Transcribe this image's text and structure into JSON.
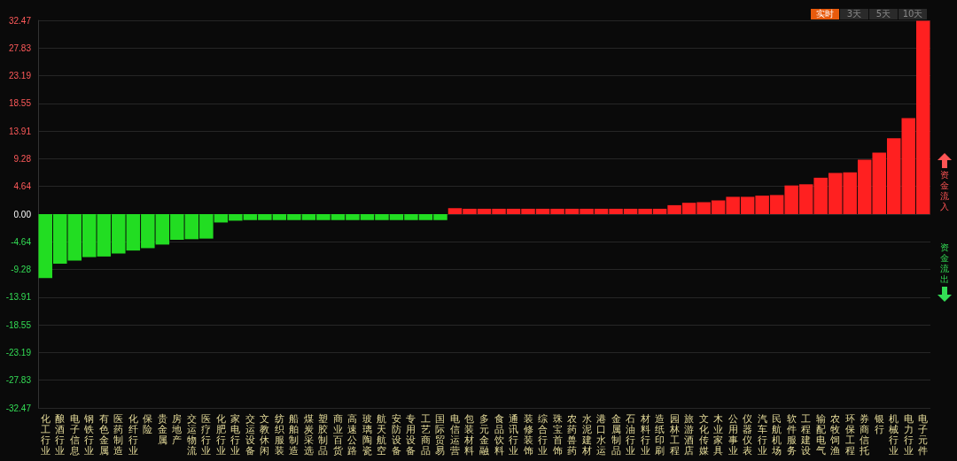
{
  "chart_data": {
    "type": "bar",
    "categories": [
      "化工行业",
      "酿酒行业",
      "电子信息",
      "钢铁行业",
      "有色金属",
      "医药制造",
      "化纤行业",
      "保险",
      "贵金属",
      "房地产",
      "交运物流",
      "医疗行业",
      "化肥行业",
      "家电行业",
      "交运设备",
      "文教休闲",
      "纺织服装",
      "船舶制造",
      "煤炭采选",
      "塑胶制品",
      "商业百货",
      "高速公路",
      "玻璃陶瓷",
      "航天航空",
      "安防设备",
      "专用设备",
      "工艺商品",
      "国际贸易",
      "电信运营",
      "包装材料",
      "多元金融",
      "食品饮料",
      "通讯行业",
      "装修装饰",
      "综合行业",
      "珠宝首饰",
      "农药兽药",
      "水泥建材",
      "港口水运",
      "金属制品",
      "石油行业",
      "材料行业",
      "造纸印刷",
      "园林工程",
      "旅游酒店",
      "文化传媒",
      "木业家具",
      "公用事业",
      "仪器仪表",
      "汽车行业",
      "民航机场",
      "软件服务",
      "工程建设",
      "输配电气",
      "农牧饲渔",
      "环保工程",
      "券商信托",
      "银行",
      "机械行业",
      "电力行业",
      "电子元件"
    ],
    "values": [
      -10.7,
      -8.3,
      -7.8,
      -7.2,
      -7.1,
      -6.6,
      -6.1,
      -5.7,
      -5.1,
      -4.3,
      -4.2,
      -4.1,
      -1.4,
      -1.1,
      -1.0,
      -1.0,
      -1.0,
      -1.0,
      -1.0,
      -1.0,
      -1.0,
      -1.0,
      -1.0,
      -1.0,
      -1.0,
      -1.0,
      -1.0,
      -1.0,
      1.0,
      0.9,
      0.9,
      0.9,
      0.9,
      0.9,
      0.9,
      0.9,
      0.9,
      0.9,
      0.9,
      0.9,
      0.9,
      0.9,
      0.9,
      1.5,
      1.9,
      2.0,
      2.3,
      2.9,
      2.9,
      3.1,
      3.2,
      4.8,
      5.0,
      6.1,
      6.9,
      7.0,
      9.1,
      10.3,
      12.7,
      16.1,
      32.4
    ],
    "colors": [
      "#22dd22",
      "#22dd22",
      "#22dd22",
      "#22dd22",
      "#22dd22",
      "#22dd22",
      "#22dd22",
      "#22dd22",
      "#22dd22",
      "#22dd22",
      "#22dd22",
      "#22dd22",
      "#22dd22",
      "#22dd22",
      "#22dd22",
      "#22dd22",
      "#22dd22",
      "#22dd22",
      "#22dd22",
      "#22dd22",
      "#22dd22",
      "#22dd22",
      "#22dd22",
      "#22dd22",
      "#22dd22",
      "#22dd22",
      "#22dd22",
      "#22dd22",
      "#ff2020",
      "#ff2020",
      "#ff2020",
      "#ff2020",
      "#ff2020",
      "#ff2020",
      "#ff2020",
      "#ff2020",
      "#ff2020",
      "#ff2020",
      "#ff2020",
      "#ff2020",
      "#ff2020",
      "#ff2020",
      "#ff2020",
      "#ff2020",
      "#ff2020",
      "#ff2020",
      "#ff2020",
      "#ff2020",
      "#ff2020",
      "#ff2020",
      "#ff2020",
      "#ff2020",
      "#ff2020",
      "#ff2020",
      "#ff2020",
      "#ff2020",
      "#ff2020",
      "#ff2020",
      "#ff2020",
      "#ff2020",
      "#ff2020"
    ],
    "ylim": [
      -32.47,
      32.47
    ],
    "yticks": [
      -32.47,
      -27.83,
      -23.19,
      -18.55,
      -13.91,
      -9.28,
      -4.64,
      {
        "value": 0,
        "label": "0.00"
      },
      4.64,
      9.28,
      13.91,
      18.55,
      23.19,
      27.83,
      32.47
    ],
    "grid": "y",
    "annotations": [
      "实时",
      "3天",
      "5天",
      "10天",
      "资金流入",
      "资金流出"
    ]
  }
}
